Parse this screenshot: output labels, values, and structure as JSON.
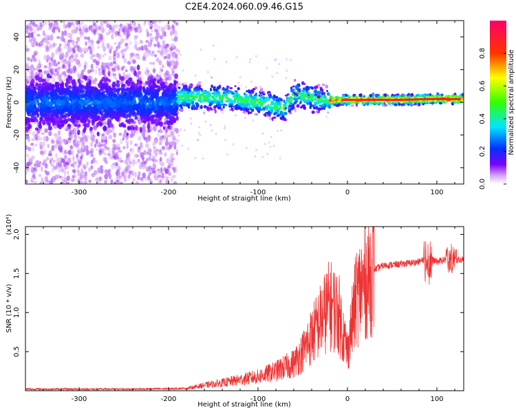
{
  "title": "C2E4.2024.060.09.46.G15",
  "chart_data": [
    {
      "type": "heatmap",
      "xlabel": "Height of straight line (km)",
      "ylabel": "Frequency (Hz)",
      "xlim": [
        -360,
        130
      ],
      "ylim": [
        -50,
        50
      ],
      "x_ticks": [
        -300,
        -200,
        -100,
        0,
        100
      ],
      "y_ticks": [
        -40,
        -20,
        0,
        20,
        40
      ],
      "colorbar": {
        "label": "Normalized spectral amplitude",
        "range": [
          0,
          1
        ],
        "ticks": [
          0.0,
          0.2,
          0.4,
          0.6,
          0.8
        ]
      },
      "ridge": {
        "x": [
          -190,
          -170,
          -150,
          -130,
          -110,
          -90,
          -70,
          -60,
          -40,
          -20,
          0,
          30,
          60,
          90,
          130
        ],
        "y": [
          3,
          3,
          3,
          2.5,
          1,
          -1,
          -4,
          5,
          3,
          1,
          1.5,
          1.5,
          1.5,
          2,
          2
        ]
      }
    },
    {
      "type": "line",
      "xlabel": "Height of straight line (km)",
      "ylabel": "SNR (10 * v/v)",
      "y_multiplier": "(x10⁴)",
      "xlim": [
        -360,
        130
      ],
      "ylim": [
        0,
        21000
      ],
      "x_ticks": [
        -300,
        -200,
        -100,
        0,
        100
      ],
      "y_ticks": [
        0.5,
        1.0,
        1.5,
        2.0
      ],
      "y_tick_labels": [
        "0.5",
        "1.0",
        "1.5",
        "2.0"
      ],
      "color": "#ee3333",
      "x": [
        -360,
        -300,
        -250,
        -200,
        -180,
        -160,
        -140,
        -120,
        -100,
        -80,
        -60,
        -50,
        -40,
        -30,
        -20,
        -10,
        0,
        10,
        20,
        30,
        40,
        60,
        80,
        90,
        100,
        110,
        120,
        130
      ],
      "y": [
        200,
        200,
        200,
        250,
        300,
        700,
        1000,
        1400,
        1800,
        2500,
        3500,
        5000,
        7000,
        9000,
        11000,
        10000,
        5000,
        12000,
        14000,
        15500,
        16000,
        16200,
        16500,
        17000,
        16500,
        16800,
        16700,
        16800
      ]
    }
  ]
}
